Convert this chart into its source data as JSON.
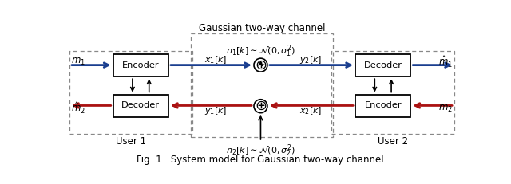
{
  "fig_width": 6.4,
  "fig_height": 2.31,
  "dpi": 100,
  "bg_color": "#ffffff",
  "title": "Fig. 1.  System model for Gaussian two-way channel.",
  "title_fontsize": 8.5,
  "channel_label": "Gaussian two-way channel",
  "noise1_label": "$n_1[k] \\sim \\mathcal{N}(0,\\sigma_1^2)$",
  "noise2_label": "$n_2[k] \\sim \\mathcal{N}(0,\\sigma_2^2)$",
  "user1_label": "User 1",
  "user2_label": "User 2",
  "m1_label": "$m_1$",
  "m2_label": "$m_2$",
  "mhat1_label": "$\\hat{m}_1$",
  "mhat2_label": "$\\hat{m}_2$",
  "x1_label": "$x_1[k]$",
  "x2_label": "$x_2[k]$",
  "y1_label": "$y_1[k]$",
  "y2_label": "$y_2[k]$",
  "encoder_label": "Encoder",
  "decoder_label": "Decoder",
  "blue_color": "#1a3e8f",
  "red_color": "#aa1111",
  "black_color": "#000000",
  "dashed_box_color": "#888888"
}
